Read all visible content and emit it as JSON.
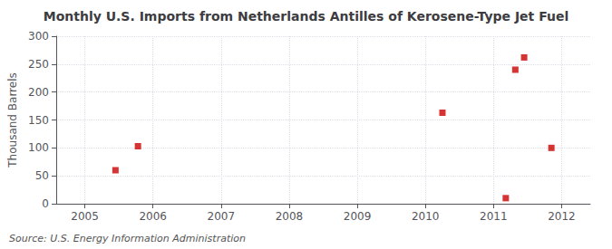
{
  "chart_data": {
    "type": "scatter",
    "title": "Monthly U.S. Imports from Netherlands Antilles of Kerosene-Type Jet Fuel",
    "y_label": "Thousand Barrels",
    "annotations": [
      "Source: U.S. Energy Information Administration"
    ],
    "x": [
      2005.45,
      2005.78,
      2010.25,
      2011.18,
      2011.32,
      2011.45,
      2011.85
    ],
    "values": [
      60,
      103,
      163,
      10,
      240,
      262,
      100
    ],
    "color": "#cc0000",
    "marker": "square",
    "xlim": [
      2004.58,
      2012.42
    ],
    "ylim": [
      0,
      300
    ],
    "xticks": [
      2005,
      2006,
      2007,
      2008,
      2009,
      2010,
      2011,
      2012
    ],
    "yticks": [
      0,
      50,
      100,
      150,
      200,
      250,
      300
    ],
    "grid": true
  }
}
